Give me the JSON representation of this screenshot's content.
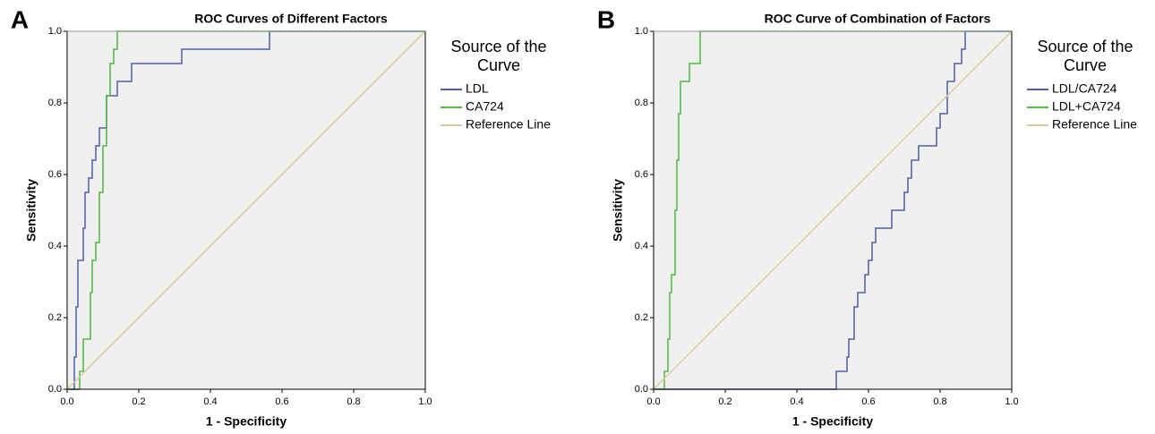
{
  "chart_data": [
    {
      "type": "line",
      "panel": "A",
      "title": "ROC Curves of Different Factors",
      "xlabel": "1 - Specificity",
      "ylabel": "Sensitivity",
      "legend_title": "Source of the Curve",
      "xlim": [
        0,
        1
      ],
      "ylim": [
        0,
        1
      ],
      "xticks": [
        {
          "value": 0,
          "label": "0.0"
        },
        {
          "value": 0.2,
          "label": "0.2"
        },
        {
          "value": 0.4,
          "label": "0.4"
        },
        {
          "value": 0.6,
          "label": "0.6"
        },
        {
          "value": 0.8,
          "label": "0.8"
        },
        {
          "value": 1,
          "label": "1.0"
        }
      ],
      "yticks": [
        {
          "value": 0,
          "label": "0.0"
        },
        {
          "value": 0.2,
          "label": "0.2"
        },
        {
          "value": 0.4,
          "label": "0.4"
        },
        {
          "value": 0.6,
          "label": "0.6"
        },
        {
          "value": 0.8,
          "label": "0.8"
        },
        {
          "value": 1,
          "label": "1.0"
        }
      ],
      "series": [
        {
          "name": "LDL",
          "color": "#4b5fae",
          "x": [
            0,
            0.02,
            0.02,
            0.025,
            0.025,
            0.03,
            0.03,
            0.045,
            0.045,
            0.05,
            0.05,
            0.06,
            0.06,
            0.07,
            0.07,
            0.08,
            0.08,
            0.09,
            0.09,
            0.11,
            0.11,
            0.14,
            0.14,
            0.18,
            0.18,
            0.32,
            0.32,
            0.565,
            0.565,
            1
          ],
          "values": [
            0,
            0,
            0.09,
            0.09,
            0.23,
            0.23,
            0.36,
            0.36,
            0.45,
            0.45,
            0.55,
            0.55,
            0.59,
            0.59,
            0.64,
            0.64,
            0.68,
            0.68,
            0.73,
            0.73,
            0.82,
            0.82,
            0.86,
            0.86,
            0.91,
            0.91,
            0.95,
            0.95,
            1,
            1
          ]
        },
        {
          "name": "CA724",
          "color": "#4fb848",
          "x": [
            0,
            0.035,
            0.035,
            0.045,
            0.045,
            0.065,
            0.065,
            0.07,
            0.07,
            0.08,
            0.08,
            0.09,
            0.09,
            0.1,
            0.1,
            0.11,
            0.11,
            0.12,
            0.12,
            0.13,
            0.13,
            0.14,
            0.14,
            1
          ],
          "values": [
            0,
            0,
            0.05,
            0.05,
            0.14,
            0.14,
            0.27,
            0.27,
            0.36,
            0.36,
            0.41,
            0.41,
            0.55,
            0.55,
            0.68,
            0.68,
            0.82,
            0.82,
            0.91,
            0.91,
            0.95,
            0.95,
            1,
            1
          ]
        },
        {
          "name": "Reference Line",
          "color": "#d9c99b",
          "x": [
            0,
            1
          ],
          "values": [
            0,
            1
          ]
        }
      ]
    },
    {
      "type": "line",
      "panel": "B",
      "title": "ROC Curve of Combination of Factors",
      "xlabel": "1 - Specificity",
      "ylabel": "Sensitivity",
      "legend_title": "Source of the Curve",
      "xlim": [
        0,
        1
      ],
      "ylim": [
        0,
        1
      ],
      "xticks": [
        {
          "value": 0,
          "label": "0.0"
        },
        {
          "value": 0.2,
          "label": "0.2"
        },
        {
          "value": 0.4,
          "label": "0.4"
        },
        {
          "value": 0.6,
          "label": "0.6"
        },
        {
          "value": 0.8,
          "label": "0.8"
        },
        {
          "value": 1,
          "label": "1.0"
        }
      ],
      "yticks": [
        {
          "value": 0,
          "label": "0.0"
        },
        {
          "value": 0.2,
          "label": "0.2"
        },
        {
          "value": 0.4,
          "label": "0.4"
        },
        {
          "value": 0.6,
          "label": "0.6"
        },
        {
          "value": 0.8,
          "label": "0.8"
        },
        {
          "value": 1,
          "label": "1.0"
        }
      ],
      "series": [
        {
          "name": "LDL/CA724",
          "color": "#4b5fae",
          "x": [
            0,
            0.51,
            0.51,
            0.54,
            0.54,
            0.545,
            0.545,
            0.56,
            0.56,
            0.57,
            0.57,
            0.59,
            0.59,
            0.6,
            0.6,
            0.61,
            0.61,
            0.62,
            0.62,
            0.665,
            0.665,
            0.7,
            0.7,
            0.71,
            0.71,
            0.72,
            0.72,
            0.74,
            0.74,
            0.79,
            0.79,
            0.8,
            0.8,
            0.82,
            0.82,
            0.84,
            0.84,
            0.86,
            0.86,
            0.87,
            0.87,
            1
          ],
          "values": [
            0,
            0,
            0.05,
            0.05,
            0.09,
            0.09,
            0.14,
            0.14,
            0.23,
            0.23,
            0.27,
            0.27,
            0.32,
            0.32,
            0.36,
            0.36,
            0.41,
            0.41,
            0.45,
            0.45,
            0.5,
            0.5,
            0.55,
            0.55,
            0.59,
            0.59,
            0.64,
            0.64,
            0.68,
            0.68,
            0.73,
            0.73,
            0.77,
            0.77,
            0.86,
            0.86,
            0.91,
            0.91,
            0.95,
            0.95,
            1,
            1
          ]
        },
        {
          "name": "LDL+CA724",
          "color": "#4fb848",
          "x": [
            0,
            0.03,
            0.03,
            0.04,
            0.04,
            0.045,
            0.045,
            0.05,
            0.05,
            0.06,
            0.06,
            0.065,
            0.065,
            0.07,
            0.07,
            0.075,
            0.075,
            0.1,
            0.1,
            0.13,
            0.13,
            1
          ],
          "values": [
            0,
            0,
            0.05,
            0.05,
            0.14,
            0.14,
            0.27,
            0.27,
            0.32,
            0.32,
            0.5,
            0.5,
            0.64,
            0.64,
            0.77,
            0.77,
            0.86,
            0.86,
            0.91,
            0.91,
            1,
            1
          ]
        },
        {
          "name": "Reference Line",
          "color": "#d9c99b",
          "x": [
            0,
            1
          ],
          "values": [
            0,
            1
          ]
        }
      ]
    }
  ]
}
